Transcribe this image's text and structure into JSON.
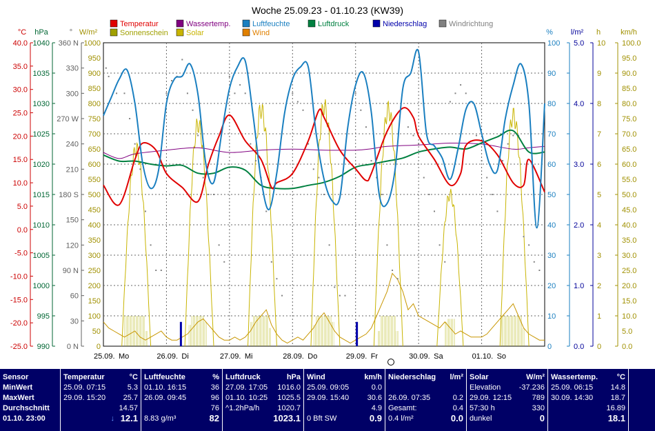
{
  "chart_data": {
    "type": "line",
    "title": "Woche 25.09.23 - 01.10.23 (KW39)",
    "x_dates": [
      "25.09.",
      "26.09.",
      "27.09.",
      "28.09.",
      "29.09.",
      "30.09.",
      "01.10."
    ],
    "x_days": [
      "Mo",
      "Di",
      "Mi",
      "Do",
      "Fr",
      "Sa",
      "So"
    ],
    "legend": [
      {
        "name": "Temperatur",
        "color": "#e00000"
      },
      {
        "name": "Wassertemp.",
        "color": "#800080"
      },
      {
        "name": "Luftfeuchte",
        "color": "#1a7fc0"
      },
      {
        "name": "Luftdruck",
        "color": "#008040"
      },
      {
        "name": "Niederschlag",
        "color": "#0000aa"
      },
      {
        "name": "Windrichtung",
        "color": "#808080"
      },
      {
        "name": "Sonnenschein",
        "color": "#a0a000"
      },
      {
        "name": "Solar",
        "color": "#c8b400"
      },
      {
        "name": "Wind",
        "color": "#e08000"
      }
    ],
    "axes": {
      "temp": {
        "unit": "°C",
        "color": "#cc0000",
        "ticks": [
          "40.0",
          "35.0",
          "30.0",
          "25.0",
          "20.0",
          "15.0",
          "10.0",
          "5.0",
          "0.0",
          "-5.0",
          "-10.0",
          "-15.0",
          "-20.0",
          "-25.0"
        ]
      },
      "pressure": {
        "unit": "hPa",
        "color": "#006633",
        "ticks": [
          "1040",
          "1035",
          "1030",
          "1025",
          "1020",
          "1015",
          "1010",
          "1005",
          "1000",
          "995",
          "990"
        ]
      },
      "direction": {
        "unit": "°",
        "color": "#606060",
        "ticks": [
          "360 N",
          "330",
          "300",
          "270 W",
          "240",
          "210",
          "180 S",
          "150",
          "120",
          "90 N",
          "60",
          "30",
          "0 N"
        ]
      },
      "solar": {
        "unit": "W/m²",
        "color": "#a09000",
        "ticks": [
          "1000",
          "950",
          "900",
          "850",
          "800",
          "750",
          "700",
          "650",
          "600",
          "550",
          "500",
          "450",
          "400",
          "350",
          "300",
          "250",
          "200",
          "150",
          "100",
          "50",
          "0"
        ]
      },
      "humidity": {
        "unit": "%",
        "color": "#1a7fc0",
        "ticks": [
          "100",
          "90",
          "80",
          "70",
          "60",
          "50",
          "40",
          "30",
          "20",
          "10",
          "0"
        ]
      },
      "rain": {
        "unit": "l/m²",
        "color": "#000099",
        "ticks": [
          "5.0",
          "4.0",
          "3.0",
          "2.0",
          "1.0",
          "0.0"
        ]
      },
      "sun": {
        "unit": "h",
        "color": "#a09000",
        "ticks": [
          "10",
          "9",
          "8",
          "7",
          "6",
          "5",
          "4",
          "3",
          "2",
          "1",
          "0"
        ]
      },
      "wind": {
        "unit": "km/h",
        "color": "#a09000",
        "ticks": [
          "100.0",
          "95.0",
          "90.0",
          "85.0",
          "80.0",
          "75.0",
          "70.0",
          "65.0",
          "60.0",
          "55.0",
          "50.0",
          "45.0",
          "40.0",
          "35.0",
          "30.0",
          "25.0",
          "20.0",
          "15.0",
          "10.0",
          "5.0",
          "0.0"
        ]
      }
    },
    "series": [
      {
        "name": "Temperatur",
        "axis": "temp",
        "t": [
          0,
          6,
          12,
          15,
          20,
          24,
          30,
          36,
          40,
          44,
          48,
          54,
          60,
          64,
          66,
          72,
          78,
          82,
          84,
          90,
          96,
          100,
          102,
          108,
          114,
          118,
          120,
          126,
          132,
          136,
          138,
          144,
          150,
          156,
          160,
          162,
          168
        ],
        "values": [
          9.5,
          5.3,
          15,
          18.5,
          17,
          12,
          9,
          6,
          14,
          20,
          24.5,
          19,
          15,
          9,
          10,
          12,
          19,
          25.5,
          24,
          17,
          13,
          10.5,
          12,
          21,
          26,
          24,
          20,
          15,
          9.5,
          12,
          18,
          19,
          16,
          10,
          9.5,
          15,
          8
        ]
      },
      {
        "name": "Wassertemp.",
        "axis": "temp",
        "t": [
          0,
          6,
          12,
          24,
          36,
          48,
          60,
          72,
          84,
          96,
          102,
          108,
          120,
          132,
          144,
          156,
          162,
          168
        ],
        "values": [
          16.5,
          15.2,
          16.2,
          17,
          17.5,
          16.5,
          17,
          17.2,
          17,
          17,
          17.3,
          17.8,
          18.1,
          18.5,
          18.3,
          17.2,
          17.5,
          17.8
        ]
      },
      {
        "name": "Luftfeuchte",
        "axis": "humidity",
        "t": [
          0,
          3,
          6,
          9,
          12,
          15,
          18,
          21,
          24,
          27,
          30,
          33,
          36,
          39,
          42,
          45,
          48,
          51,
          54,
          57,
          60,
          63,
          66,
          69,
          72,
          75,
          78,
          81,
          84,
          87,
          90,
          93,
          96,
          99,
          102,
          105,
          108,
          111,
          114,
          117,
          120,
          123,
          126,
          129,
          132,
          135,
          138,
          141,
          144,
          147,
          150,
          153,
          156,
          159,
          162,
          165,
          168
        ],
        "values": [
          76,
          82,
          88,
          91,
          80,
          60,
          52,
          58,
          80,
          88,
          89,
          93,
          83,
          60,
          54,
          70,
          85,
          92,
          94,
          76,
          55,
          45,
          57,
          77,
          88,
          92,
          92,
          70,
          55,
          48,
          49,
          72,
          86,
          90,
          77,
          50,
          47,
          58,
          85,
          90,
          97,
          70,
          66,
          62,
          55,
          65,
          78,
          80,
          70,
          60,
          58,
          75,
          86,
          93,
          80,
          39,
          80
        ]
      },
      {
        "name": "Luftdruck",
        "axis": "pressure",
        "t": [
          0,
          6,
          12,
          18,
          24,
          30,
          36,
          42,
          48,
          54,
          60,
          66,
          72,
          78,
          84,
          90,
          96,
          102,
          108,
          114,
          120,
          126,
          132,
          138,
          144,
          150,
          156,
          162,
          168
        ],
        "values": [
          1021.5,
          1020.5,
          1020.5,
          1020,
          1019.7,
          1019.8,
          1018.5,
          1018.5,
          1019.5,
          1019,
          1016.5,
          1016,
          1016,
          1016.5,
          1017,
          1018,
          1019.5,
          1020,
          1020.5,
          1021,
          1022,
          1022.5,
          1022.8,
          1022.5,
          1023.5,
          1024.5,
          1025.5,
          1022,
          1022
        ]
      }
    ],
    "solar_days": [
      {
        "start": 7,
        "peak": 12.5,
        "end": 18,
        "max": 650
      },
      {
        "start": 31,
        "peak": 36,
        "end": 42,
        "max": 730
      },
      {
        "start": 55,
        "peak": 60,
        "end": 66,
        "max": 780
      },
      {
        "start": 79,
        "peak": 84,
        "end": 90,
        "max": 789
      },
      {
        "start": 103,
        "peak": 108.5,
        "end": 114,
        "max": 780
      },
      {
        "start": 127,
        "peak": 132,
        "end": 137,
        "max": 500
      },
      {
        "start": 151,
        "peak": 156,
        "end": 162,
        "max": 760
      }
    ],
    "sunshine_hours": [
      {
        "day": 0,
        "hours": [
          1,
          1,
          1,
          1,
          1,
          1,
          1,
          1,
          0.5
        ]
      },
      {
        "day": 1,
        "hours": [
          0.7,
          1,
          1,
          1,
          1,
          1,
          0.8
        ]
      },
      {
        "day": 2,
        "hours": [
          0.8,
          1,
          1,
          1,
          1,
          1,
          1,
          0.6
        ]
      },
      {
        "day": 3,
        "hours": [
          0.7,
          1,
          1,
          1,
          1,
          1,
          1,
          0.8
        ]
      },
      {
        "day": 4,
        "hours": [
          0.5,
          1,
          1,
          1,
          1,
          1,
          1,
          0.5
        ]
      },
      {
        "day": 5,
        "hours": [
          0.8,
          0.9,
          0.9,
          0.9
        ]
      },
      {
        "day": 6,
        "hours": [
          1,
          1,
          1,
          1,
          1,
          1,
          1,
          1,
          0.6
        ]
      }
    ],
    "rain_bars": [
      {
        "t": 29.5,
        "value": 0.2
      },
      {
        "t": 96.5,
        "value": 0.2
      }
    ],
    "direction_points": [
      [
        1,
        330
      ],
      [
        2,
        320
      ],
      [
        5,
        300
      ],
      [
        8,
        300
      ],
      [
        10,
        270
      ],
      [
        12,
        240
      ],
      [
        14,
        210
      ],
      [
        16,
        160
      ],
      [
        18,
        120
      ],
      [
        20,
        90
      ],
      [
        22,
        90
      ],
      [
        24,
        300
      ],
      [
        26,
        315
      ],
      [
        28,
        320
      ],
      [
        30,
        340
      ],
      [
        32,
        300
      ],
      [
        34,
        280
      ],
      [
        36,
        250
      ],
      [
        38,
        200
      ],
      [
        40,
        180
      ],
      [
        42,
        180
      ],
      [
        44,
        120
      ],
      [
        46,
        100
      ],
      [
        48,
        320
      ],
      [
        50,
        300
      ],
      [
        52,
        310
      ],
      [
        54,
        300
      ],
      [
        56,
        240
      ],
      [
        58,
        220
      ],
      [
        60,
        200
      ],
      [
        62,
        160
      ],
      [
        64,
        100
      ],
      [
        66,
        80
      ],
      [
        68,
        60
      ],
      [
        72,
        300
      ],
      [
        74,
        290
      ],
      [
        76,
        280
      ],
      [
        78,
        240
      ],
      [
        80,
        210
      ],
      [
        82,
        200
      ],
      [
        84,
        180
      ],
      [
        86,
        120
      ],
      [
        88,
        70
      ],
      [
        90,
        60
      ],
      [
        92,
        60
      ],
      [
        96,
        300
      ],
      [
        98,
        280
      ],
      [
        100,
        260
      ],
      [
        102,
        220
      ],
      [
        104,
        200
      ],
      [
        106,
        180
      ],
      [
        108,
        120
      ],
      [
        110,
        90
      ],
      [
        112,
        80
      ],
      [
        116,
        260
      ],
      [
        118,
        250
      ],
      [
        120,
        240
      ],
      [
        122,
        200
      ],
      [
        124,
        180
      ],
      [
        126,
        160
      ],
      [
        128,
        120
      ],
      [
        130,
        100
      ],
      [
        132,
        290
      ],
      [
        134,
        300
      ],
      [
        136,
        310
      ],
      [
        138,
        300
      ],
      [
        140,
        290
      ],
      [
        142,
        250
      ],
      [
        144,
        220
      ],
      [
        146,
        200
      ],
      [
        148,
        180
      ],
      [
        150,
        160
      ],
      [
        152,
        220
      ],
      [
        154,
        240
      ],
      [
        156,
        250
      ],
      [
        158,
        250
      ],
      [
        160,
        130
      ],
      [
        162,
        120
      ],
      [
        164,
        100
      ],
      [
        166,
        90
      ]
    ],
    "wind_points": [
      [
        0,
        8
      ],
      [
        2,
        6
      ],
      [
        4,
        5
      ],
      [
        6,
        4
      ],
      [
        8,
        3
      ],
      [
        10,
        4
      ],
      [
        12,
        5
      ],
      [
        14,
        3
      ],
      [
        16,
        2
      ],
      [
        18,
        3
      ],
      [
        20,
        4
      ],
      [
        22,
        5
      ],
      [
        24,
        3
      ],
      [
        26,
        2
      ],
      [
        28,
        2
      ],
      [
        30,
        3
      ],
      [
        32,
        4
      ],
      [
        34,
        6
      ],
      [
        36,
        8
      ],
      [
        38,
        9
      ],
      [
        40,
        7
      ],
      [
        42,
        5
      ],
      [
        44,
        3
      ],
      [
        46,
        2
      ],
      [
        48,
        2
      ],
      [
        50,
        3
      ],
      [
        52,
        2
      ],
      [
        54,
        3
      ],
      [
        56,
        5
      ],
      [
        58,
        8
      ],
      [
        60,
        10
      ],
      [
        62,
        12
      ],
      [
        64,
        7
      ],
      [
        66,
        4
      ],
      [
        68,
        2
      ],
      [
        70,
        1
      ],
      [
        72,
        2
      ],
      [
        74,
        3
      ],
      [
        76,
        2
      ],
      [
        78,
        4
      ],
      [
        80,
        6
      ],
      [
        82,
        9
      ],
      [
        84,
        11
      ],
      [
        86,
        8
      ],
      [
        88,
        5
      ],
      [
        90,
        3
      ],
      [
        92,
        2
      ],
      [
        94,
        1
      ],
      [
        96,
        2
      ],
      [
        98,
        3
      ],
      [
        100,
        4
      ],
      [
        102,
        6
      ],
      [
        104,
        10
      ],
      [
        106,
        14
      ],
      [
        108,
        18
      ],
      [
        110,
        24
      ],
      [
        112,
        22
      ],
      [
        114,
        18
      ],
      [
        116,
        12
      ],
      [
        118,
        14
      ],
      [
        120,
        10
      ],
      [
        122,
        9
      ],
      [
        124,
        8
      ],
      [
        126,
        7
      ],
      [
        128,
        6
      ],
      [
        130,
        8
      ],
      [
        132,
        6
      ],
      [
        134,
        4
      ],
      [
        136,
        5
      ],
      [
        138,
        4
      ],
      [
        140,
        3
      ],
      [
        142,
        3
      ],
      [
        144,
        3
      ],
      [
        146,
        4
      ],
      [
        148,
        6
      ],
      [
        150,
        8
      ],
      [
        152,
        10
      ],
      [
        154,
        12
      ],
      [
        156,
        14
      ],
      [
        158,
        10
      ],
      [
        160,
        6
      ],
      [
        162,
        4
      ],
      [
        164,
        3
      ],
      [
        166,
        2
      ],
      [
        168,
        2
      ]
    ]
  },
  "stats": {
    "labels": {
      "sensor": "Sensor",
      "min": "MinWert",
      "max": "MaxWert",
      "avg": "Durchschnitt",
      "now": "01.10. 23:00"
    },
    "temp": {
      "title": "Temperatur",
      "unit": "°C",
      "min_date": "25.09. 07:15",
      "min": "5.3",
      "max_date": "29.09. 15:20",
      "max": "25.7",
      "avg": "14.57",
      "now_arrow": "↓",
      "now": "12.1"
    },
    "hum": {
      "title": "Luftfeuchte",
      "unit": "%",
      "min_date": "01.10. 16:15",
      "min": "36",
      "max_date": "26.09. 09:45",
      "max": "96",
      "avg": "76",
      "extra": "8.83 g/m³",
      "now": "82"
    },
    "press": {
      "title": "Luftdruck",
      "unit": "hPa",
      "min_date": "27.09. 17:05",
      "min": "1016.0",
      "max_date": "01.10. 10:25",
      "max": "1025.5",
      "trend": "^1.2hPa/h",
      "avg": "1020.7",
      "now": "1023.1"
    },
    "wind": {
      "title": "Wind",
      "unit": "km/h",
      "min_date": "25.09. 09:05",
      "min": "0.0",
      "max_date": "29.09. 15:40",
      "max": "30.6",
      "avg": "4.9",
      "extra": "0 Bft SW",
      "now": "0.9"
    },
    "rain": {
      "title": "Niederschlag",
      "unit": "l/m²",
      "max_date": "26.09. 07:35",
      "max": "0.2",
      "total_label": "Gesamt:",
      "total": "0.4",
      "extra": "0.4 l/m²",
      "now": "0.0"
    },
    "solar": {
      "title": "Solar",
      "unit": "W/m²",
      "elev_label": "Elevation",
      "elev": "-37.236",
      "max_date": "29.09. 12:15",
      "max": "789",
      "sun_h": "57:30 h",
      "avg": "330",
      "extra": "dunkel",
      "now": "0"
    },
    "water": {
      "title": "Wassertemp.",
      "unit": "°C",
      "min_date": "25.09. 06:15",
      "min": "14.8",
      "max_date": "30.09. 14:30",
      "max": "18.7",
      "avg": "16.89",
      "now": "18.1"
    }
  }
}
